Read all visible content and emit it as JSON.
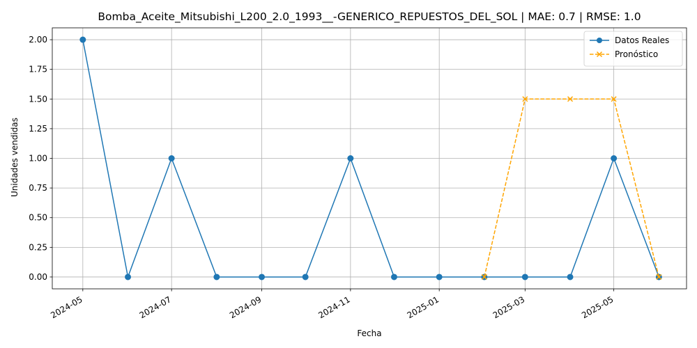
{
  "chart_data": {
    "type": "line",
    "title": "Bomba_Aceite_Mitsubishi_L200_2.0_1993__-GENERICO_REPUESTOS_DEL_SOL | MAE: 0.7 | RMSE: 1.0",
    "xlabel": "Fecha",
    "ylabel": "Unidades vendidas",
    "x_tick_labels": [
      "2024-05",
      "2024-07",
      "2024-09",
      "2024-11",
      "2025-01",
      "2025-03",
      "2025-05"
    ],
    "y_tick_labels": [
      "0.00",
      "0.25",
      "0.50",
      "0.75",
      "1.00",
      "1.25",
      "1.50",
      "1.75",
      "2.00"
    ],
    "ylim": [
      -0.1,
      2.1
    ],
    "xlim": [
      "2024-04-10",
      "2025-06-20"
    ],
    "grid": true,
    "legend_position": "top-right",
    "series": [
      {
        "name": "Datos Reales",
        "color": "#1f77b4",
        "line_style": "solid",
        "marker": "circle",
        "x": [
          "2024-05-01",
          "2024-06-01",
          "2024-07-01",
          "2024-08-01",
          "2024-09-01",
          "2024-10-01",
          "2024-11-01",
          "2024-12-01",
          "2025-01-01",
          "2025-02-01",
          "2025-03-01",
          "2025-04-01",
          "2025-05-01",
          "2025-06-01"
        ],
        "values": [
          2,
          0,
          1,
          0,
          0,
          0,
          1,
          0,
          0,
          0,
          0,
          0,
          1,
          0
        ]
      },
      {
        "name": "Pronóstico",
        "color": "#ffa500",
        "line_style": "dashed",
        "marker": "x",
        "x": [
          "2025-02-01",
          "2025-03-01",
          "2025-04-01",
          "2025-05-01",
          "2025-06-01"
        ],
        "values": [
          0,
          1.5,
          1.5,
          1.5,
          0
        ]
      }
    ]
  }
}
